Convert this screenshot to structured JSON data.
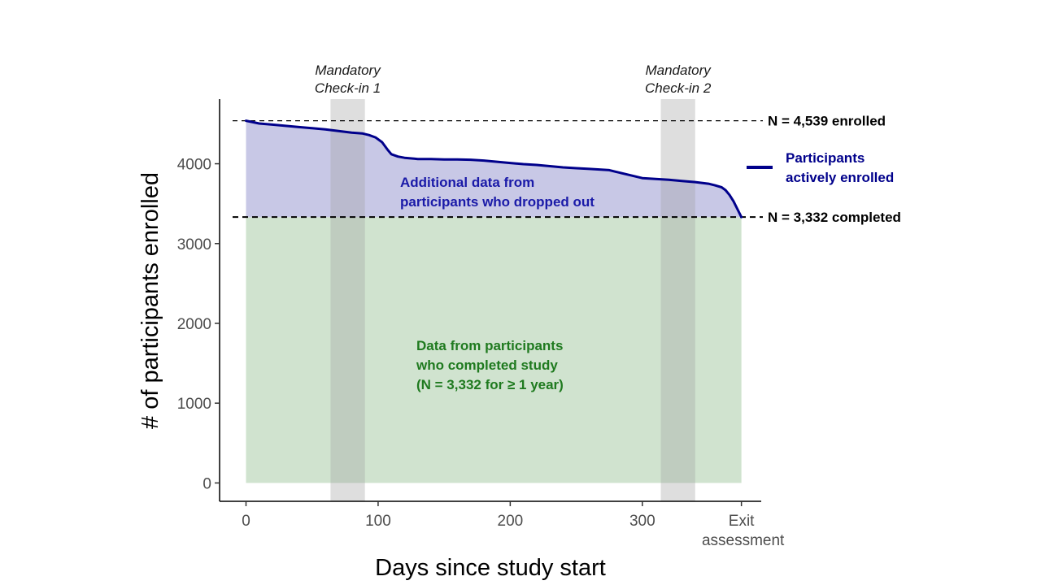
{
  "chart_data": {
    "type": "area",
    "title": "",
    "xlabel": "Days since study start",
    "ylabel": "# of participants enrolled",
    "xlim": [
      -20,
      390
    ],
    "ylim": [
      -230,
      4810
    ],
    "x_ticks": [
      {
        "value": 0,
        "label": "0"
      },
      {
        "value": 100,
        "label": "100"
      },
      {
        "value": 200,
        "label": "200"
      },
      {
        "value": 300,
        "label": "300"
      },
      {
        "value": 375,
        "label": "Exit assessment"
      }
    ],
    "y_ticks": [
      0,
      1000,
      2000,
      3000,
      4000
    ],
    "grid": false,
    "series": [
      {
        "name": "Participants actively enrolled",
        "color": "#00008b",
        "x": [
          0,
          10,
          20,
          30,
          40,
          50,
          60,
          70,
          80,
          88,
          93,
          98,
          103,
          107,
          110,
          115,
          120,
          130,
          140,
          150,
          160,
          170,
          180,
          190,
          200,
          210,
          220,
          230,
          240,
          250,
          260,
          270,
          275,
          280,
          290,
          300,
          310,
          320,
          330,
          340,
          350,
          355,
          360,
          363,
          366,
          369,
          372,
          375
        ],
        "values": [
          4539,
          4505,
          4490,
          4475,
          4460,
          4445,
          4430,
          4410,
          4390,
          4380,
          4360,
          4330,
          4270,
          4180,
          4120,
          4090,
          4075,
          4060,
          4060,
          4055,
          4055,
          4050,
          4040,
          4025,
          4010,
          3995,
          3985,
          3970,
          3955,
          3945,
          3935,
          3925,
          3920,
          3900,
          3860,
          3820,
          3810,
          3800,
          3785,
          3770,
          3750,
          3730,
          3705,
          3670,
          3610,
          3530,
          3430,
          3332
        ]
      }
    ],
    "regions": [
      {
        "name": "dropped-out",
        "label": "Additional data from participants who dropped out",
        "color": "#1a1aa8",
        "fill": "#c8c8e6"
      },
      {
        "name": "completed",
        "label": "Data from participants who completed study (N = 3,332 for ≥ 1 year)",
        "color": "#1f7a1f",
        "fill": "#d0e3cf"
      }
    ],
    "shaded_periods": [
      {
        "label": "Mandatory Check-in 1",
        "from": 64,
        "to": 90
      },
      {
        "label": "Mandatory Check-in 2",
        "from": 314,
        "to": 340
      }
    ],
    "reference_lines": [
      {
        "value": 4539,
        "label": "N = 4,539 enrolled"
      },
      {
        "value": 3332,
        "label": "N = 3,332 completed"
      }
    ],
    "legend": {
      "label": "Participants actively enrolled",
      "position": "right"
    }
  }
}
